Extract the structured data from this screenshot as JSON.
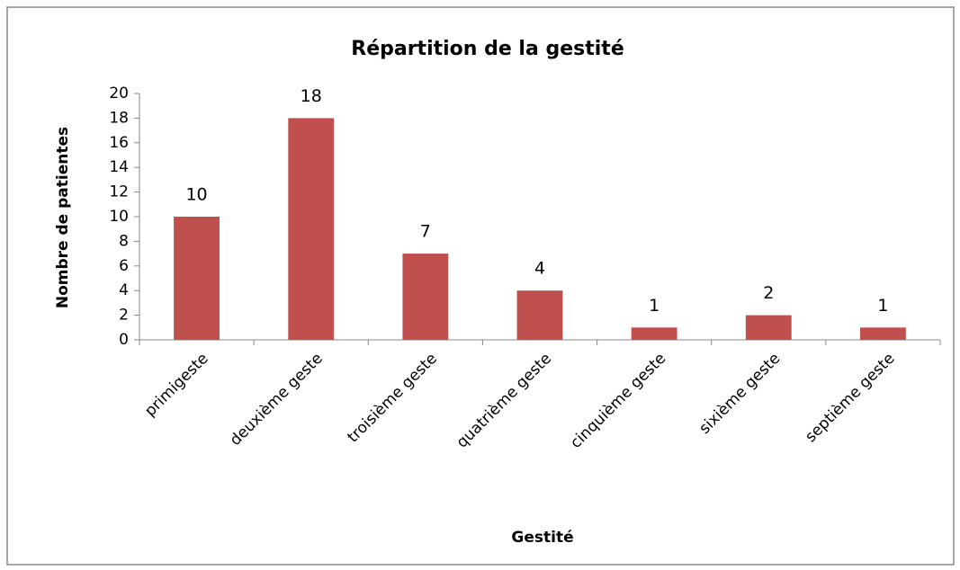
{
  "chart_data": {
    "type": "bar",
    "title": "Répartition de la gestité",
    "x_label": "Gestité",
    "y_label": "Nombre de patientes",
    "categories": [
      "primigeste",
      "deuxième geste",
      "troisième geste",
      "quatrième geste",
      "cinquième geste",
      "sixième geste",
      "septième geste"
    ],
    "values": [
      10,
      18,
      7,
      4,
      1,
      2,
      1
    ],
    "color": "#c0504d",
    "ylim": [
      0,
      20
    ],
    "yticks": [
      0,
      2,
      4,
      6,
      8,
      10,
      12,
      14,
      16,
      18,
      20
    ],
    "grid": false
  }
}
